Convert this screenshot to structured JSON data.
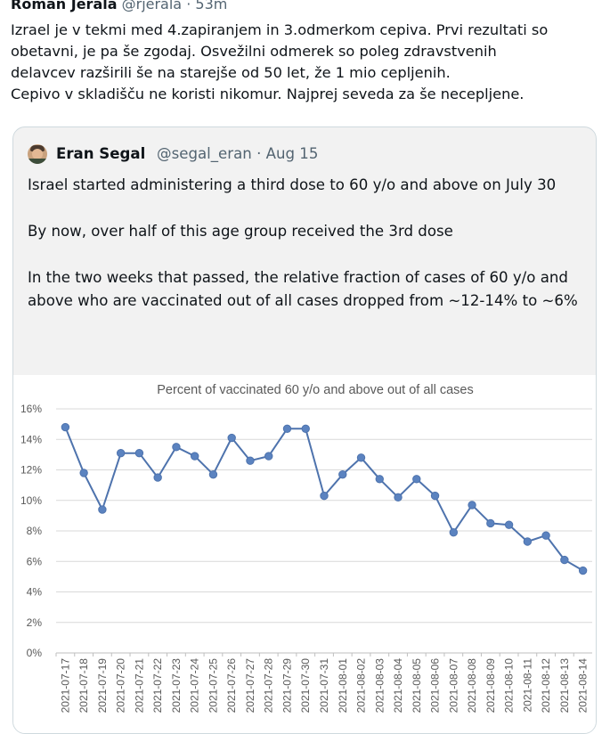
{
  "tweet": {
    "author_name": "Roman Jerala",
    "handle": "@rjerala",
    "separator": "·",
    "time": "53m",
    "lines": [
      "Izrael je v tekmi med 4.zapiranjem in 3.odmerkom cepiva. Prvi rezultati so",
      "obetavni, je pa še zgodaj. Osvežilni odmerek so poleg zdravstvenih",
      "delavcev razširili še na starejše od 50 let, že 1 mio cepljenih.",
      "Cepivo v skladišču ne koristi nikomur. Najprej seveda za še necepljene."
    ]
  },
  "quoted_tweet": {
    "author_name": "Eran Segal",
    "handle": "@segal_eran",
    "separator": "·",
    "date": "Aug 15",
    "avatar_icon": "user-avatar",
    "paragraphs": [
      "Israel started administering a third dose to 60 y/o and above on July 30",
      "By now, over half of this age group received the 3rd dose",
      "In the two weeks that passed, the relative fraction of cases of 60 y/o and above who are vaccinated out of all cases dropped from ~12-14% to ~6%"
    ]
  },
  "chart_data": {
    "type": "line",
    "title": "Percent of vaccinated 60 y/o and above out of all cases",
    "xlabel": "",
    "ylabel": "",
    "ylim": [
      0,
      16
    ],
    "y_ticks": [
      "0%",
      "2%",
      "4%",
      "6%",
      "8%",
      "10%",
      "12%",
      "14%",
      "16%"
    ],
    "grid": true,
    "legend": "none",
    "x_tick_prefix": "21",
    "x": [
      "2021-07-17",
      "2021-07-18",
      "2021-07-19",
      "2021-07-20",
      "2021-07-21",
      "2021-07-22",
      "2021-07-23",
      "2021-07-24",
      "2021-07-25",
      "2021-07-26",
      "2021-07-27",
      "2021-07-28",
      "2021-07-29",
      "2021-07-30",
      "2021-07-31",
      "2021-08-01",
      "2021-08-02",
      "2021-08-03",
      "2021-08-04",
      "2021-08-05",
      "2021-08-06",
      "2021-08-07",
      "2021-08-08",
      "2021-08-09",
      "2021-08-10",
      "2021-08-11",
      "2021-08-12",
      "2021-08-13",
      "2021-08-14"
    ],
    "values": [
      14.8,
      11.8,
      9.4,
      13.1,
      13.1,
      11.5,
      13.5,
      12.9,
      11.7,
      14.1,
      12.6,
      12.9,
      14.7,
      14.7,
      10.3,
      11.7,
      12.8,
      11.4,
      10.2,
      11.4,
      10.3,
      7.9,
      9.7,
      8.5,
      8.4,
      7.3,
      7.7,
      6.1,
      5.4
    ],
    "line_color": "#4e73ad",
    "marker_color": "#5b83c0"
  }
}
